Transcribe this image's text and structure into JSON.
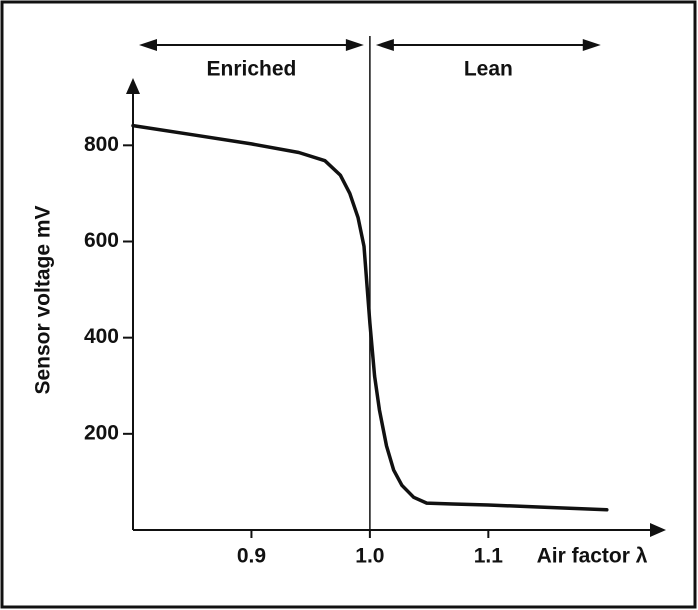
{
  "chart_data": {
    "type": "line",
    "x_label": "Air factor λ",
    "y_label": "Sensor voltage mV",
    "x": [
      0.8,
      0.85,
      0.9,
      0.94,
      0.962,
      0.975,
      0.983,
      0.99,
      0.995,
      1.0,
      1.004,
      1.008,
      1.014,
      1.02,
      1.027,
      1.037,
      1.048,
      1.07,
      1.1,
      1.15,
      1.2
    ],
    "series": [
      {
        "name": "Sensor voltage",
        "color": "#111111",
        "values": [
          841,
          822,
          803,
          785,
          768,
          738,
          700,
          650,
          590,
          430,
          320,
          250,
          175,
          125,
          93,
          68,
          56,
          54,
          52,
          47,
          42
        ]
      }
    ],
    "regions": [
      {
        "label": "Enriched",
        "from": 0.8,
        "to": 1.0
      },
      {
        "label": "Lean",
        "from": 1.0,
        "to": 1.2
      }
    ],
    "vline": 1.0,
    "xlim": [
      0.8,
      1.25
    ],
    "ylim": [
      0,
      940
    ],
    "xticks": [
      0.9,
      {
        "value": 1.0,
        "label": "1.0"
      },
      1.1
    ],
    "yticks": [
      200,
      400,
      600,
      800
    ]
  }
}
